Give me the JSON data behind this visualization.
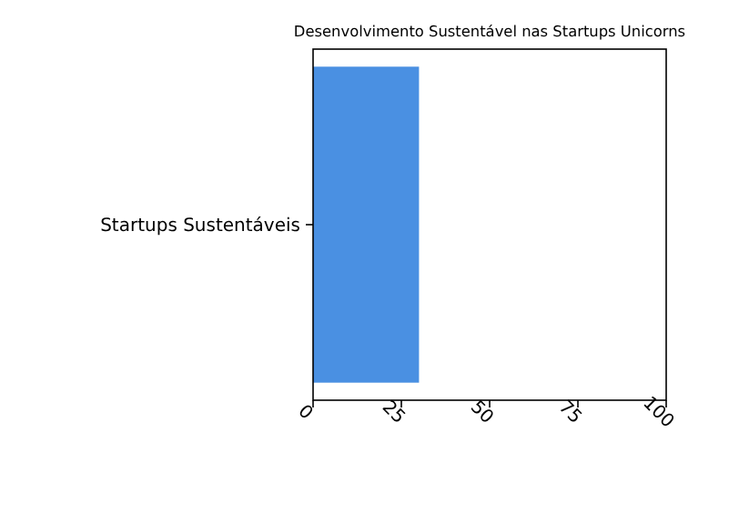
{
  "chart_data": {
    "type": "bar",
    "orientation": "horizontal",
    "title": "Desenvolvimento Sustentável nas Startups Unicorns",
    "categories": [
      "Startups Sustentáveis"
    ],
    "values": [
      30
    ],
    "color": "#4a90e2",
    "xlim": [
      0,
      100
    ],
    "xticks": [
      0,
      25,
      50,
      75,
      100
    ],
    "grid": false
  }
}
